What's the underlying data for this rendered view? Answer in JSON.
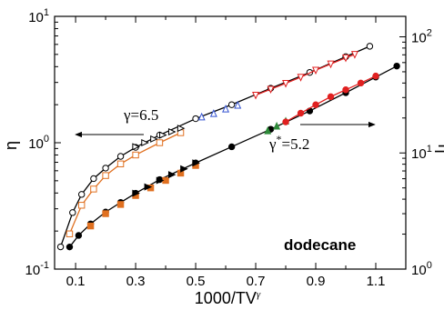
{
  "chart_data": {
    "type": "scatter",
    "title": "",
    "xlabel": "1000/TV",
    "xlabel_sup": "γ",
    "ylabel_left": "η",
    "ylabel_right": "η",
    "ylabel_right_sup": "*",
    "xlim": [
      0.03,
      1.2
    ],
    "ylim_left": [
      0.1,
      10
    ],
    "ylim_right": [
      1,
      150
    ],
    "yscale": "log",
    "grid": false,
    "x_ticks": [
      "0.1",
      "0.3",
      "0.5",
      "0.7",
      "0.9",
      "1.1"
    ],
    "y_left_ticks": [
      {
        "base": "10",
        "exp": "-1"
      },
      {
        "base": "10",
        "exp": "0"
      },
      {
        "base": "10",
        "exp": "1"
      }
    ],
    "y_right_ticks": [
      {
        "base": "10",
        "exp": "0"
      },
      {
        "base": "10",
        "exp": "1"
      },
      {
        "base": "10",
        "exp": "2"
      }
    ],
    "annotations": {
      "gamma_left": "γ=6.5",
      "gamma_right_main": "γ",
      "gamma_right_sup": "*",
      "gamma_right_value": "=5.2",
      "substance": "dodecane"
    },
    "series": [
      {
        "axis": "left",
        "marker": "open-circle",
        "color": "#000000",
        "line": true,
        "x": [
          0.05,
          0.09,
          0.12,
          0.16,
          0.2,
          0.25,
          0.3,
          0.38,
          0.5,
          0.62,
          0.75,
          0.88,
          1.0,
          1.08
        ],
        "y": [
          0.15,
          0.28,
          0.39,
          0.52,
          0.63,
          0.78,
          0.92,
          1.15,
          1.55,
          2.0,
          2.7,
          3.6,
          4.8,
          5.8
        ]
      },
      {
        "axis": "left",
        "marker": "open-square",
        "color": "#e07020",
        "line": true,
        "x": [
          0.08,
          0.12,
          0.16,
          0.2,
          0.25,
          0.3,
          0.38,
          0.45
        ],
        "y": [
          0.19,
          0.32,
          0.43,
          0.55,
          0.68,
          0.8,
          1.0,
          1.2
        ]
      },
      {
        "axis": "left",
        "marker": "open-triangle-right",
        "color": "#000000",
        "line": false,
        "x": [
          0.3,
          0.33,
          0.36,
          0.39,
          0.42,
          0.45
        ],
        "y": [
          0.93,
          1.0,
          1.07,
          1.15,
          1.22,
          1.3
        ]
      },
      {
        "axis": "left",
        "marker": "open-triangle-up",
        "color": "#3050d0",
        "line": false,
        "x": [
          0.52,
          0.56,
          0.6,
          0.64
        ],
        "y": [
          1.6,
          1.7,
          1.85,
          1.98
        ]
      },
      {
        "axis": "left",
        "marker": "open-triangle-down",
        "color": "#e02020",
        "line": true,
        "x": [
          0.7,
          0.75,
          0.8,
          0.85,
          0.9,
          0.95,
          1.0,
          1.03
        ],
        "y": [
          2.38,
          2.65,
          2.95,
          3.3,
          3.75,
          4.2,
          4.7,
          5.0
        ]
      },
      {
        "axis": "right",
        "marker": "filled-circle",
        "color": "#000000",
        "line": true,
        "x": [
          0.08,
          0.11,
          0.15,
          0.2,
          0.25,
          0.3,
          0.38,
          0.5,
          0.62,
          0.75,
          0.88,
          1.0,
          1.1,
          1.17
        ],
        "y": [
          1.55,
          1.95,
          2.45,
          3.1,
          3.75,
          4.5,
          5.9,
          8.2,
          11.3,
          16.0,
          23.0,
          33.0,
          45.0,
          56.0
        ]
      },
      {
        "axis": "right",
        "marker": "filled-square",
        "color": "#e07020",
        "line": false,
        "x": [
          0.15,
          0.2,
          0.25,
          0.3,
          0.35,
          0.4,
          0.45,
          0.5
        ],
        "y": [
          2.35,
          3.0,
          3.6,
          4.3,
          5.0,
          5.8,
          6.7,
          7.8
        ]
      },
      {
        "axis": "right",
        "marker": "filled-triangle-right",
        "color": "#000000",
        "line": false,
        "x": [
          0.3,
          0.34,
          0.38,
          0.42,
          0.46,
          0.5
        ],
        "y": [
          4.5,
          5.1,
          5.8,
          6.5,
          7.3,
          8.2
        ]
      },
      {
        "axis": "right",
        "marker": "filled-triangle-up",
        "color": "#2e8b3a",
        "line": false,
        "x": [
          0.74,
          0.77,
          0.8
        ],
        "y": [
          15.5,
          17.0,
          18.8
        ]
      },
      {
        "axis": "right",
        "marker": "filled-circle",
        "color": "#e02020",
        "line": true,
        "x": [
          0.8,
          0.85,
          0.9,
          0.95,
          1.0,
          1.05,
          1.1
        ],
        "y": [
          18.5,
          22.0,
          26.0,
          30.5,
          35.0,
          40.0,
          46.0
        ]
      }
    ]
  }
}
